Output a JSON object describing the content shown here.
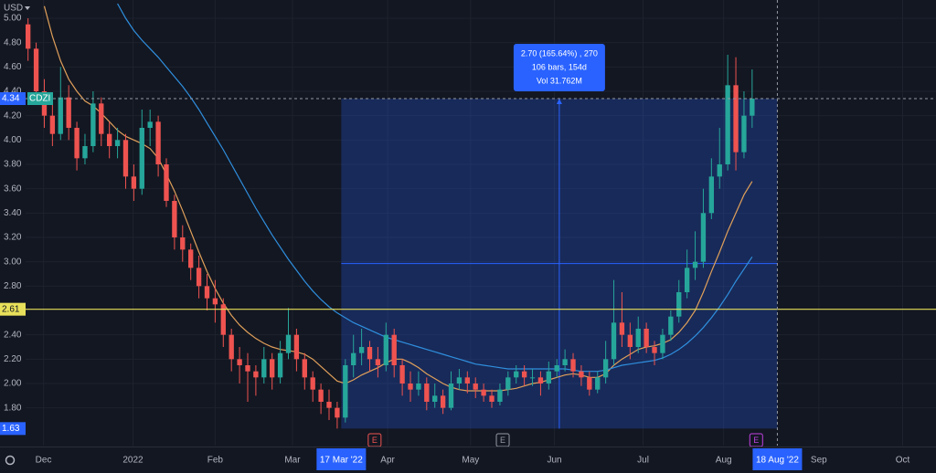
{
  "chart_data": {
    "type": "candlestick",
    "currency": "USD",
    "symbol": "CDZI",
    "up_color": "#26a69a",
    "down_color": "#ef5350",
    "candles": [
      [
        4.95,
        5.0,
        4.65,
        4.75
      ],
      [
        4.75,
        4.8,
        4.3,
        4.4
      ],
      [
        4.4,
        4.5,
        4.1,
        4.2
      ],
      [
        4.2,
        4.3,
        3.95,
        4.05
      ],
      [
        4.05,
        4.6,
        4.0,
        4.35
      ],
      [
        4.35,
        4.45,
        4.0,
        4.1
      ],
      [
        4.1,
        4.15,
        3.75,
        3.85
      ],
      [
        3.85,
        4.05,
        3.8,
        3.95
      ],
      [
        3.95,
        4.4,
        3.9,
        4.3
      ],
      [
        4.3,
        4.35,
        3.95,
        4.05
      ],
      [
        4.05,
        4.15,
        3.85,
        3.95
      ],
      [
        3.95,
        4.1,
        3.85,
        4.0
      ],
      [
        4.0,
        4.05,
        3.6,
        3.7
      ],
      [
        3.7,
        3.8,
        3.5,
        3.6
      ],
      [
        3.6,
        4.25,
        3.55,
        4.1
      ],
      [
        4.1,
        4.25,
        3.95,
        4.15
      ],
      [
        4.15,
        4.2,
        3.7,
        3.8
      ],
      [
        3.8,
        3.85,
        3.45,
        3.5
      ],
      [
        3.5,
        3.55,
        3.1,
        3.2
      ],
      [
        3.2,
        3.3,
        3.0,
        3.1
      ],
      [
        3.1,
        3.15,
        2.85,
        2.95
      ],
      [
        2.95,
        3.05,
        2.7,
        2.8
      ],
      [
        2.8,
        2.9,
        2.6,
        2.7
      ],
      [
        2.7,
        2.85,
        2.5,
        2.65
      ],
      [
        2.65,
        2.7,
        2.3,
        2.4
      ],
      [
        2.4,
        2.45,
        2.1,
        2.2
      ],
      [
        2.2,
        2.3,
        2.0,
        2.15
      ],
      [
        2.15,
        2.25,
        1.85,
        2.1
      ],
      [
        2.1,
        2.15,
        1.9,
        2.05
      ],
      [
        2.05,
        2.3,
        2.0,
        2.2
      ],
      [
        2.2,
        2.25,
        1.95,
        2.05
      ],
      [
        2.05,
        2.35,
        2.0,
        2.25
      ],
      [
        2.25,
        2.62,
        2.2,
        2.4
      ],
      [
        2.4,
        2.45,
        2.1,
        2.2
      ],
      [
        2.2,
        2.25,
        1.95,
        2.05
      ],
      [
        2.05,
        2.1,
        1.85,
        1.95
      ],
      [
        1.95,
        2.0,
        1.75,
        1.85
      ],
      [
        1.85,
        1.95,
        1.7,
        1.8
      ],
      [
        1.8,
        1.85,
        1.63,
        1.72
      ],
      [
        1.72,
        2.2,
        1.68,
        2.15
      ],
      [
        2.15,
        2.4,
        2.05,
        2.25
      ],
      [
        2.25,
        2.45,
        2.15,
        2.3
      ],
      [
        2.3,
        2.35,
        2.1,
        2.2
      ],
      [
        2.2,
        2.3,
        2.05,
        2.15
      ],
      [
        2.15,
        2.5,
        2.1,
        2.4
      ],
      [
        2.4,
        2.45,
        2.05,
        2.15
      ],
      [
        2.15,
        2.2,
        1.9,
        2.0
      ],
      [
        2.0,
        2.1,
        1.85,
        1.95
      ],
      [
        1.95,
        2.1,
        1.9,
        2.0
      ],
      [
        2.0,
        2.05,
        1.78,
        1.85
      ],
      [
        1.85,
        2.0,
        1.8,
        1.9
      ],
      [
        1.9,
        1.95,
        1.75,
        1.8
      ],
      [
        1.8,
        2.1,
        1.78,
        2.0
      ],
      [
        2.0,
        2.12,
        1.95,
        2.05
      ],
      [
        2.05,
        2.1,
        1.92,
        2.0
      ],
      [
        2.0,
        2.05,
        1.88,
        1.95
      ],
      [
        1.95,
        2.0,
        1.85,
        1.9
      ],
      [
        1.9,
        1.95,
        1.8,
        1.85
      ],
      [
        1.85,
        2.0,
        1.82,
        1.95
      ],
      [
        1.95,
        2.1,
        1.9,
        2.05
      ],
      [
        2.05,
        2.15,
        2.0,
        2.1
      ],
      [
        2.1,
        2.15,
        1.98,
        2.05
      ],
      [
        2.05,
        2.12,
        1.98,
        2.05
      ],
      [
        2.05,
        2.1,
        1.9,
        2.0
      ],
      [
        2.0,
        2.18,
        1.95,
        2.1
      ],
      [
        2.1,
        2.2,
        2.05,
        2.15
      ],
      [
        2.15,
        2.28,
        2.1,
        2.2
      ],
      [
        2.2,
        2.25,
        2.05,
        2.1
      ],
      [
        2.1,
        2.15,
        1.98,
        2.05
      ],
      [
        2.05,
        2.1,
        1.9,
        1.95
      ],
      [
        1.95,
        2.1,
        1.92,
        2.05
      ],
      [
        2.05,
        2.35,
        2.0,
        2.2
      ],
      [
        2.2,
        2.85,
        2.15,
        2.5
      ],
      [
        2.5,
        2.75,
        2.3,
        2.4
      ],
      [
        2.4,
        2.5,
        2.2,
        2.3
      ],
      [
        2.3,
        2.55,
        2.25,
        2.45
      ],
      [
        2.45,
        2.5,
        2.25,
        2.3
      ],
      [
        2.3,
        2.35,
        2.15,
        2.25
      ],
      [
        2.25,
        2.45,
        2.2,
        2.4
      ],
      [
        2.4,
        2.6,
        2.35,
        2.55
      ],
      [
        2.55,
        2.85,
        2.5,
        2.75
      ],
      [
        2.75,
        3.1,
        2.7,
        2.95
      ],
      [
        2.95,
        3.25,
        2.85,
        3.0
      ],
      [
        3.0,
        3.6,
        2.95,
        3.4
      ],
      [
        3.4,
        3.85,
        3.35,
        3.7
      ],
      [
        3.7,
        4.1,
        3.6,
        3.8
      ],
      [
        3.8,
        4.7,
        3.75,
        4.45
      ],
      [
        4.45,
        4.68,
        3.75,
        3.9
      ],
      [
        3.9,
        4.4,
        3.85,
        4.2
      ],
      [
        4.2,
        4.58,
        4.1,
        4.34
      ]
    ],
    "series": [
      {
        "color": "#e0a05a",
        "values": [
          null,
          null,
          5.1,
          4.85,
          4.65,
          4.5,
          4.4,
          4.32,
          4.28,
          4.22,
          4.15,
          4.08,
          4.03,
          4.0,
          3.97,
          3.93,
          3.85,
          3.72,
          3.58,
          3.42,
          3.25,
          3.08,
          2.92,
          2.78,
          2.66,
          2.56,
          2.48,
          2.42,
          2.37,
          2.33,
          2.3,
          2.28,
          2.27,
          2.26,
          2.24,
          2.2,
          2.14,
          2.08,
          2.02,
          2.0,
          2.03,
          2.07,
          2.1,
          2.13,
          2.17,
          2.2,
          2.2,
          2.17,
          2.13,
          2.08,
          2.04,
          2.0,
          1.97,
          1.95,
          1.94,
          1.94,
          1.94,
          1.94,
          1.94,
          1.95,
          1.96,
          1.98,
          2.0,
          2.01,
          2.03,
          2.05,
          2.07,
          2.08,
          2.07,
          2.05,
          2.05,
          2.08,
          2.15,
          2.2,
          2.24,
          2.28,
          2.3,
          2.31,
          2.33,
          2.36,
          2.42,
          2.5,
          2.6,
          2.75,
          2.92,
          3.08,
          3.25,
          3.4,
          3.55,
          3.66
        ]
      },
      {
        "color": "#2f8fde",
        "values": [
          null,
          null,
          null,
          null,
          null,
          null,
          null,
          null,
          null,
          null,
          null,
          5.12,
          5.0,
          4.9,
          4.82,
          4.75,
          4.68,
          4.6,
          4.52,
          4.44,
          4.35,
          4.25,
          4.14,
          4.03,
          3.92,
          3.8,
          3.68,
          3.56,
          3.44,
          3.33,
          3.22,
          3.12,
          3.02,
          2.93,
          2.84,
          2.76,
          2.69,
          2.63,
          2.58,
          2.54,
          2.5,
          2.47,
          2.44,
          2.41,
          2.38,
          2.36,
          2.34,
          2.32,
          2.3,
          2.28,
          2.26,
          2.24,
          2.22,
          2.2,
          2.18,
          2.16,
          2.15,
          2.14,
          2.13,
          2.12,
          2.12,
          2.12,
          2.12,
          2.12,
          2.12,
          2.12,
          2.12,
          2.11,
          2.1,
          2.1,
          2.1,
          2.11,
          2.13,
          2.15,
          2.16,
          2.17,
          2.18,
          2.19,
          2.21,
          2.24,
          2.28,
          2.33,
          2.39,
          2.46,
          2.54,
          2.63,
          2.73,
          2.84,
          2.94,
          3.04
        ]
      }
    ],
    "xlim": [
      -0.3,
      111.6
    ],
    "ylim": [
      1.49,
      5.15
    ],
    "xticks": [
      {
        "value": 1.9,
        "label": "Dec"
      },
      {
        "value": 12.9,
        "label": "2022"
      },
      {
        "value": 23,
        "label": "Feb"
      },
      {
        "value": 32.5,
        "label": "Mar"
      },
      {
        "value": 44.2,
        "label": "Apr"
      },
      {
        "value": 54.4,
        "label": "May"
      },
      {
        "value": 64.7,
        "label": "Jun"
      },
      {
        "value": 75.6,
        "label": "Jul"
      },
      {
        "value": 85.5,
        "label": "Aug"
      },
      {
        "value": 97.2,
        "label": "Sep"
      },
      {
        "value": 107.5,
        "label": "Oct"
      }
    ],
    "yticks": [
      {
        "value": 1.8,
        "label": "1.80"
      },
      {
        "value": 2,
        "label": "2.00"
      },
      {
        "value": 2.2,
        "label": "2.20"
      },
      {
        "value": 2.4,
        "label": "2.40"
      },
      {
        "value": 2.8,
        "label": "2.80"
      },
      {
        "value": 3,
        "label": "3.00"
      },
      {
        "value": 3.2,
        "label": "3.20"
      },
      {
        "value": 3.4,
        "label": "3.40"
      },
      {
        "value": 3.6,
        "label": "3.60"
      },
      {
        "value": 3.8,
        "label": "3.80"
      },
      {
        "value": 4,
        "label": "4.00"
      },
      {
        "value": 4.2,
        "label": "4.20"
      },
      {
        "value": 4.4,
        "label": "4.40"
      },
      {
        "value": 4.6,
        "label": "4.60"
      },
      {
        "value": 4.8,
        "label": "4.80"
      },
      {
        "value": 5,
        "label": "5.00"
      }
    ],
    "grid": true,
    "levels": [
      {
        "value": 2.61,
        "color": "#e8e05a"
      }
    ],
    "last_price": 4.34,
    "measure": {
      "start": 38.5,
      "end": 92.1,
      "from": 1.63,
      "to": 4.34,
      "start_label": "17 Mar '22",
      "end_label": "18 Aug '22",
      "tooltip": [
        "2.70 (165.64%) , 270",
        "106 bars, 154d",
        "Vol 31.762M"
      ]
    },
    "events": [
      {
        "x": 42.6,
        "label": "E",
        "color": "#ef5350"
      },
      {
        "x": 58.35,
        "label": "E",
        "color": "#9598a1"
      },
      {
        "x": 89.5,
        "label": "E",
        "color": "#c040e0"
      }
    ]
  }
}
